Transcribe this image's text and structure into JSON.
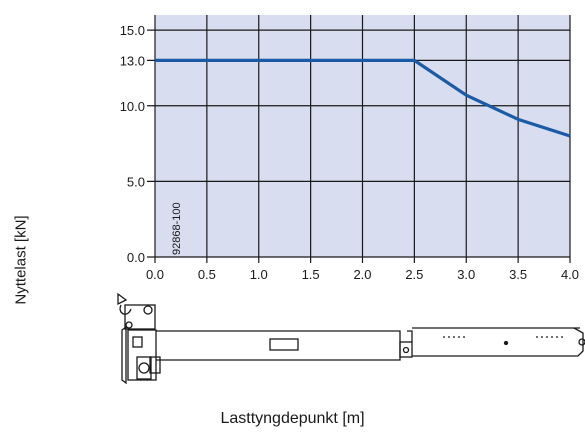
{
  "chart_data": {
    "type": "line",
    "xlabel": "Lasttyngdepunkt [m]",
    "ylabel": "Nyttelast [kN]",
    "xlim": [
      0,
      4
    ],
    "ylim": [
      0,
      16
    ],
    "x_ticks": [
      "0.0",
      "0.5",
      "1.0",
      "1.5",
      "2.0",
      "2.5",
      "3.0",
      "3.5",
      "4.0"
    ],
    "y_ticks": [
      "0.0",
      "5.0",
      "10.0",
      "13.0",
      "15.0"
    ],
    "y_tick_values": [
      0,
      5,
      10,
      13,
      15
    ],
    "grid": true,
    "annotation": "92868-100",
    "series": [
      {
        "x": [
          0,
          2.5,
          3.0,
          3.5,
          4.0
        ],
        "y": [
          13.0,
          13.0,
          10.7,
          9.1,
          8.0
        ],
        "color": "#1a5aa6"
      }
    ],
    "background_color": "#d8ddef",
    "grid_color": "#1a1a1a"
  }
}
